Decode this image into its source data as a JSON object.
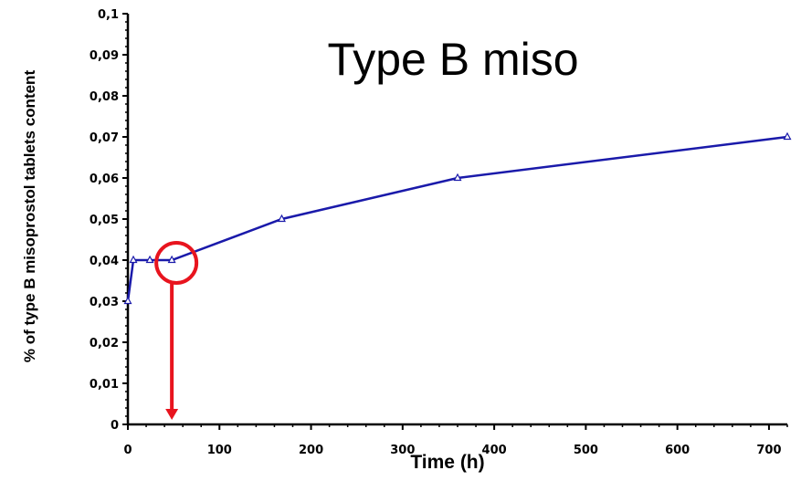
{
  "chart_data": {
    "type": "line",
    "title": "Type B miso",
    "xlabel": "Time (h)",
    "ylabel": "% of type B misoprostol tablets content",
    "xlim": [
      0,
      720
    ],
    "ylim": [
      0,
      0.1
    ],
    "x_ticks": [
      0,
      100,
      200,
      300,
      400,
      500,
      600,
      700
    ],
    "x_tick_labels": [
      "0",
      "100",
      "200",
      "300",
      "400",
      "500",
      "600",
      "700"
    ],
    "y_ticks": [
      0,
      0.01,
      0.02,
      0.03,
      0.04,
      0.05,
      0.06,
      0.07,
      0.08,
      0.09,
      0.1
    ],
    "y_tick_labels": [
      "0",
      "0,01",
      "0,02",
      "0,03",
      "0,04",
      "0,05",
      "0,06",
      "0,07",
      "0,08",
      "0,09",
      "0,1"
    ],
    "grid": false,
    "series": [
      {
        "x": [
          0,
          6,
          24,
          48,
          168,
          360,
          720
        ],
        "values": [
          0.03,
          0.04,
          0.04,
          0.04,
          0.05,
          0.06,
          0.07
        ]
      }
    ],
    "annotations": [
      {
        "type": "circle",
        "x": 48,
        "y": 0.04
      },
      {
        "type": "arrow",
        "from": [
          48,
          0.04
        ],
        "to": [
          48,
          0
        ]
      }
    ],
    "colors": {
      "series": "#1a1aaa",
      "annotation": "#e8141e"
    }
  }
}
